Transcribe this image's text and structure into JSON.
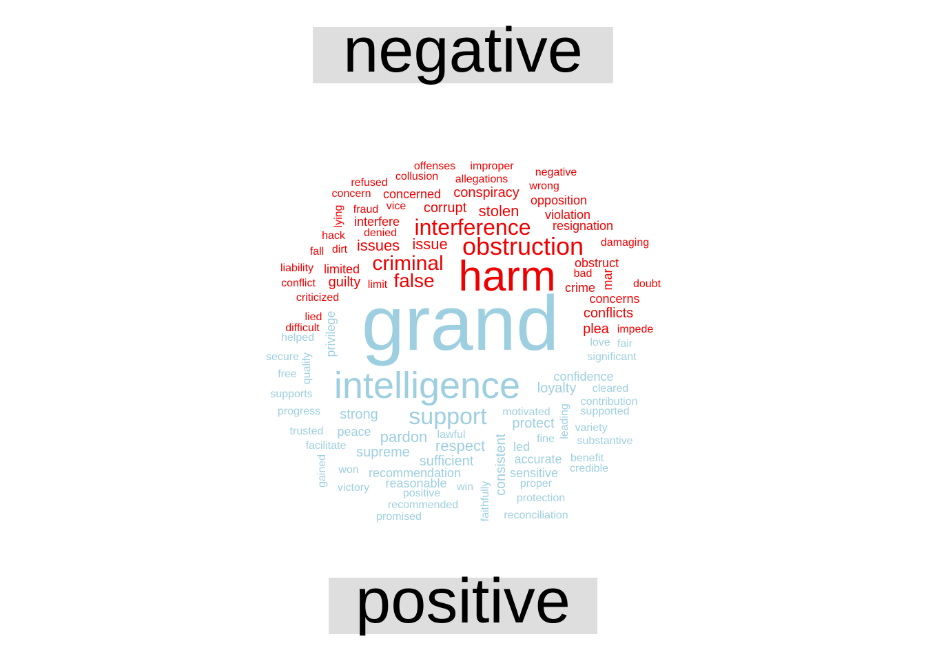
{
  "labels": {
    "negative": "negative",
    "positive": "positive"
  },
  "colors": {
    "negative": "#ee0000",
    "positive": "#9ecfe1"
  },
  "negative_words": [
    "harm",
    "obstruction",
    "interference",
    "criminal",
    "false",
    "issues",
    "issue",
    "stolen",
    "corrupt",
    "conspiracy",
    "concerned",
    "collusion",
    "allegations",
    "offenses",
    "improper",
    "refused",
    "concern",
    "negative",
    "wrong",
    "opposition",
    "violation",
    "resignation",
    "damaging",
    "obstruct",
    "bad",
    "crime",
    "mar",
    "doubt",
    "concerns",
    "conflicts",
    "plea",
    "impede",
    "fraud",
    "vice",
    "interfere",
    "denied",
    "lying",
    "hack",
    "dirt",
    "fall",
    "liability",
    "limited",
    "guilty",
    "conflict",
    "limit",
    "criticized",
    "lied",
    "difficult"
  ],
  "positive_words": [
    "grand",
    "intelligence",
    "support",
    "confidence",
    "loyalty",
    "cleared",
    "contribution",
    "supported",
    "motivated",
    "protect",
    "leading",
    "strong",
    "pardon",
    "respect",
    "lawful",
    "peace",
    "supreme",
    "sufficient",
    "consistent",
    "led",
    "fine",
    "variety",
    "substantive",
    "accurate",
    "benefit",
    "credible",
    "sensitive",
    "proper",
    "protection",
    "recommendation",
    "reasonable",
    "positive",
    "win",
    "recommended",
    "promised",
    "faithfully",
    "reconciliation",
    "helped",
    "secure",
    "privilege",
    "qualify",
    "free",
    "supports",
    "progress",
    "trusted",
    "facilitate",
    "gained",
    "won",
    "victory",
    "love",
    "fair",
    "significant"
  ]
}
